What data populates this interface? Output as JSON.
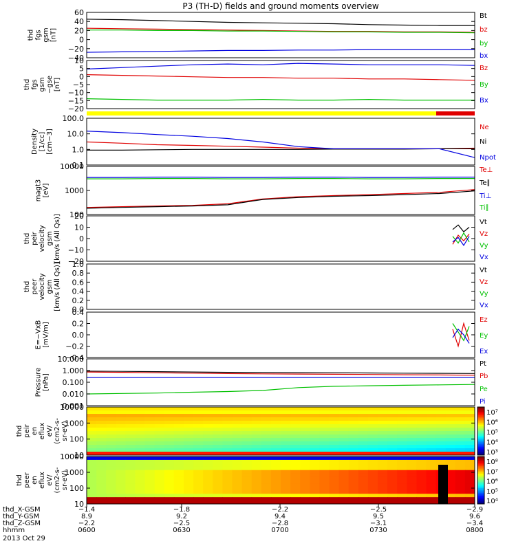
{
  "title": "P3 (TH-D) fields and ground moments overview",
  "colors": {
    "black": "#000000",
    "red": "#e00000",
    "green": "#00c000",
    "blue": "#0000e0",
    "yellow": "#ffff00"
  },
  "chart_data": [
    {
      "id": "fgs_gsm",
      "type": "line",
      "ylabel": [
        "thd",
        "fgs",
        "gsm",
        "[nT]"
      ],
      "yticks": [
        "60",
        "40",
        "20",
        "0",
        "−20",
        "−40"
      ],
      "ylim": [
        -40,
        60
      ],
      "series": [
        {
          "name": "Bt",
          "color": "#000000",
          "values": [
            45,
            44,
            42,
            40,
            38,
            37,
            36,
            35,
            33,
            32,
            31,
            31
          ]
        },
        {
          "name": "bz",
          "color": "#e00000",
          "values": [
            25,
            24,
            23,
            22,
            21,
            20,
            19,
            18,
            18,
            17,
            17,
            16
          ]
        },
        {
          "name": "by",
          "color": "#00c000",
          "values": [
            21,
            21,
            20,
            20,
            19,
            19,
            18,
            17,
            17,
            16,
            16,
            15
          ]
        },
        {
          "name": "bx",
          "color": "#0000e0",
          "values": [
            -28,
            -27,
            -26,
            -25,
            -24,
            -24,
            -23,
            -23,
            -22,
            -22,
            -22,
            -22
          ]
        }
      ]
    },
    {
      "id": "fgs_gse",
      "type": "line",
      "ylabel": [
        "thd",
        "fgs",
        "gsm",
        "−gse",
        "[nT]"
      ],
      "yticks": [
        "10",
        "5",
        "0",
        "−5",
        "−10",
        "−15",
        "−20"
      ],
      "ylim": [
        -22,
        12
      ],
      "series": [
        {
          "name": "Bz",
          "color": "#e00000",
          "values": [
            2,
            1.5,
            1,
            0.5,
            0,
            0,
            -0.5,
            -0.5,
            -1,
            -1,
            -1.5,
            -2
          ]
        },
        {
          "name": "By",
          "color": "#00c000",
          "values": [
            -15,
            -15.5,
            -16,
            -16,
            -16,
            -15.5,
            -16,
            -16,
            -15.5,
            -16,
            -16,
            -16
          ]
        },
        {
          "name": "Bx",
          "color": "#0000e0",
          "values": [
            6,
            7,
            8,
            9,
            9.5,
            9,
            10,
            9.5,
            9,
            9,
            9,
            8.5
          ]
        }
      ]
    },
    {
      "id": "density",
      "type": "line",
      "log": true,
      "ylabel": [
        "Density",
        "[1/cc]",
        "[cm−3]"
      ],
      "yticks": [
        "100.0",
        "10.0",
        "1.0",
        "0.1"
      ],
      "ylim": [
        0.1,
        100
      ],
      "series": [
        {
          "name": "Ne",
          "color": "#e00000",
          "values": [
            3,
            2.5,
            2,
            1.8,
            1.6,
            1.4,
            1.2,
            1.1,
            1.1,
            1.1,
            1.1,
            1.2
          ]
        },
        {
          "name": "Ni",
          "color": "#000000",
          "values": [
            0.9,
            0.9,
            0.95,
            1.0,
            1.0,
            1.0,
            1.0,
            1.05,
            1.05,
            1.05,
            1.1,
            1.1
          ]
        },
        {
          "name": "Npot",
          "color": "#0000e0",
          "values": [
            15,
            12,
            9,
            7,
            5,
            3,
            1.5,
            1.1,
            1.1,
            1.1,
            1.1,
            0.3
          ]
        }
      ]
    },
    {
      "id": "temperature",
      "type": "line",
      "log": true,
      "ylabel": [
        "magt3",
        "[eV]"
      ],
      "yticks": [
        "10000",
        "1000",
        "100"
      ],
      "ylim": [
        20,
        10000
      ],
      "series": [
        {
          "name": "Te⊥",
          "color": "#e00000",
          "values": [
            50,
            55,
            60,
            65,
            80,
            150,
            200,
            230,
            260,
            300,
            350,
            500
          ]
        },
        {
          "name": "Te∥",
          "color": "#000000",
          "values": [
            45,
            50,
            55,
            60,
            70,
            140,
            180,
            210,
            230,
            260,
            300,
            420
          ]
        },
        {
          "name": "Ti⊥",
          "color": "#0000e0",
          "values": [
            2400,
            2400,
            2500,
            2500,
            2400,
            2400,
            2500,
            2500,
            2400,
            2400,
            2500,
            2500
          ]
        },
        {
          "name": "Ti∥",
          "color": "#00c000",
          "values": [
            2000,
            2000,
            2100,
            2100,
            2000,
            2000,
            2100,
            2100,
            2000,
            2000,
            2100,
            2100
          ]
        }
      ]
    },
    {
      "id": "peir_velocity",
      "type": "line",
      "ylabel": [
        "thd",
        "peir",
        "velocity",
        "gsm",
        "[km/s (All Qs)]"
      ],
      "yticks": [
        "20",
        "10",
        "0",
        "−10",
        "−20"
      ],
      "ylim": [
        -20,
        20
      ],
      "series": [
        {
          "name": "Vt",
          "color": "#000000",
          "values": [
            8,
            12,
            6,
            10
          ]
        },
        {
          "name": "Vz",
          "color": "#e00000",
          "values": [
            -5,
            3,
            -2,
            4
          ]
        },
        {
          "name": "Vy",
          "color": "#00c000",
          "values": [
            2,
            -4,
            5,
            -3
          ]
        },
        {
          "name": "Vx",
          "color": "#0000e0",
          "values": [
            -3,
            1,
            -6,
            2
          ]
        }
      ]
    },
    {
      "id": "peer_velocity",
      "type": "line",
      "ylabel": [
        "thd",
        "peer",
        "velocity",
        "gsm",
        "[km/s (All Qs)]"
      ],
      "yticks": [
        "1.0",
        "0.8",
        "0.6",
        "0.4",
        "0.2",
        "0.0"
      ],
      "ylim": [
        0,
        1
      ],
      "series": [
        {
          "name": "Vt",
          "color": "#000000",
          "values": []
        },
        {
          "name": "Vz",
          "color": "#e00000",
          "values": []
        },
        {
          "name": "Vy",
          "color": "#00c000",
          "values": []
        },
        {
          "name": "Vx",
          "color": "#0000e0",
          "values": []
        }
      ]
    },
    {
      "id": "efield",
      "type": "line",
      "ylabel": [
        "E=−VxB",
        "[mV/m]"
      ],
      "yticks": [
        "0.4",
        "0.2",
        "0.0",
        "−0.2",
        "−0.4"
      ],
      "ylim": [
        -0.4,
        0.4
      ],
      "series": [
        {
          "name": "Ez",
          "color": "#e00000",
          "values": [
            0.1,
            -0.2,
            0.2,
            -0.1
          ]
        },
        {
          "name": "Ey",
          "color": "#00c000",
          "values": [
            0.2,
            0.05,
            -0.1,
            0.15
          ]
        },
        {
          "name": "Ex",
          "color": "#0000e0",
          "values": [
            -0.05,
            0.1,
            0.0,
            -0.15
          ]
        }
      ]
    },
    {
      "id": "pressure",
      "type": "line",
      "log": true,
      "ylabel": [
        "Pressure",
        "[nPa]"
      ],
      "yticks": [
        "10.000",
        "1.000",
        "0.100",
        "0.010",
        "0.001"
      ],
      "ylim": [
        0.001,
        10
      ],
      "series": [
        {
          "name": "Pt",
          "color": "#000000",
          "values": [
            0.9,
            0.85,
            0.8,
            0.75,
            0.7,
            0.68,
            0.66,
            0.65,
            0.62,
            0.6,
            0.58,
            0.56
          ]
        },
        {
          "name": "Pb",
          "color": "#e00000",
          "values": [
            0.75,
            0.7,
            0.65,
            0.6,
            0.55,
            0.52,
            0.5,
            0.48,
            0.46,
            0.44,
            0.42,
            0.4
          ]
        },
        {
          "name": "Pe",
          "color": "#00c000",
          "values": [
            0.01,
            0.011,
            0.012,
            0.014,
            0.016,
            0.02,
            0.035,
            0.045,
            0.05,
            0.055,
            0.06,
            0.065
          ]
        },
        {
          "name": "Pi",
          "color": "#0000e0",
          "values": [
            0.25,
            0.25,
            0.25,
            0.25,
            0.25,
            0.25,
            0.25,
            0.25,
            0.25,
            0.25,
            0.25,
            0.25
          ]
        }
      ]
    },
    {
      "id": "peir_eflux",
      "type": "heatmap",
      "ylabel": [
        "thd",
        "peir",
        "en",
        "eflux",
        "eV/",
        "(cm2-s-",
        "sr-eV)"
      ],
      "yticks": [
        "10000",
        "1000",
        "100",
        "10"
      ],
      "colorbar_ticks": [
        "10⁷",
        "10⁶",
        "10⁵",
        "10⁴",
        "10³"
      ]
    },
    {
      "id": "peer_eflux",
      "type": "heatmap",
      "ylabel": [
        "thd",
        "peer",
        "en",
        "eflux",
        "eV/",
        "(cm2-s-",
        "sr-eV)"
      ],
      "yticks": [
        "10000",
        "1000",
        "100",
        "10"
      ],
      "colorbar_ticks": [
        "10⁸",
        "10⁷",
        "10⁶",
        "10⁵",
        "10⁴"
      ]
    }
  ],
  "xaxis": {
    "rows": [
      {
        "label": "thd_X-GSM",
        "values": [
          "−1.4",
          "−1.8",
          "−2.2",
          "−2.5",
          "−2.9"
        ]
      },
      {
        "label": "thd_Y-GSM",
        "values": [
          "8.9",
          "9.2",
          "9.4",
          "9.5",
          "9.6"
        ]
      },
      {
        "label": "thd_Z-GSM",
        "values": [
          "−2.2",
          "−2.5",
          "−2.8",
          "−3.1",
          "−3.4"
        ]
      },
      {
        "label": "hhmm",
        "values": [
          "0600",
          "0630",
          "0700",
          "0730",
          "0800"
        ]
      }
    ],
    "date": "2013 Oct 29"
  }
}
